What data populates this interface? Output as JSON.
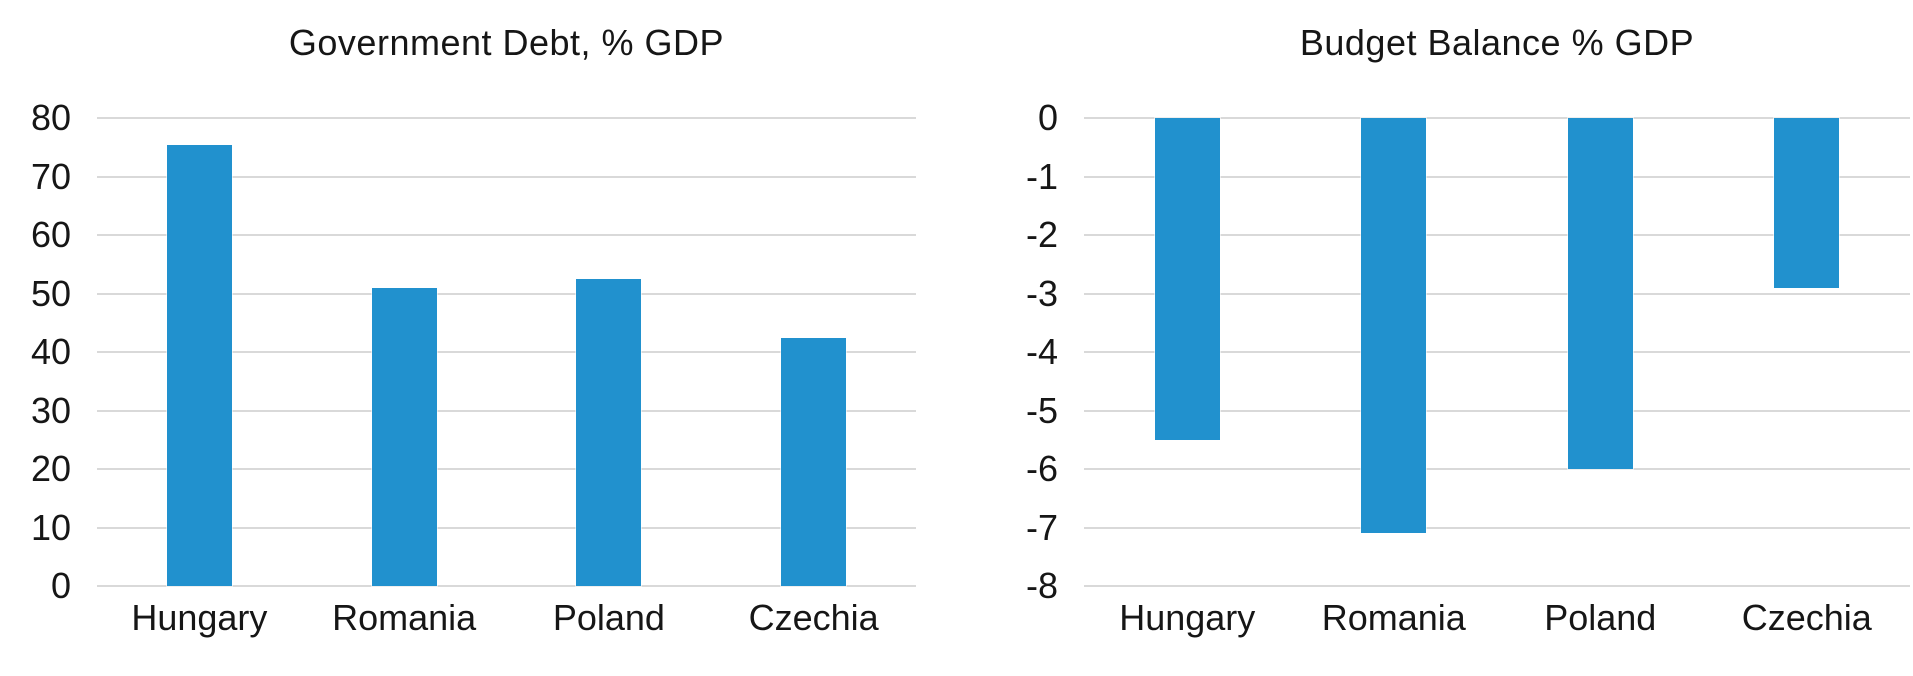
{
  "chart_data": [
    {
      "type": "bar",
      "title": "Government Debt, % GDP",
      "categories": [
        "Hungary",
        "Romania",
        "Poland",
        "Czechia"
      ],
      "values": [
        75.4,
        51.0,
        52.5,
        42.4
      ],
      "xlabel": "",
      "ylabel": "",
      "ylim": [
        0,
        80
      ],
      "yticks": [
        80,
        70,
        60,
        50,
        40,
        30,
        20,
        10,
        0
      ],
      "grid": true,
      "legend": "none",
      "bar_color": "#2191CE",
      "gridline_color": "#d9d9d9"
    },
    {
      "type": "bar",
      "title": "Budget Balance % GDP",
      "categories": [
        "Hungary",
        "Romania",
        "Poland",
        "Czechia"
      ],
      "values": [
        -5.5,
        -7.1,
        -6.0,
        -2.9
      ],
      "xlabel": "",
      "ylabel": "",
      "ylim": [
        -8,
        0
      ],
      "yticks": [
        0,
        -1,
        -2,
        -3,
        -4,
        -5,
        -6,
        -7,
        -8
      ],
      "grid": true,
      "legend": "none",
      "bar_color": "#2191CE",
      "gridline_color": "#d9d9d9"
    }
  ]
}
